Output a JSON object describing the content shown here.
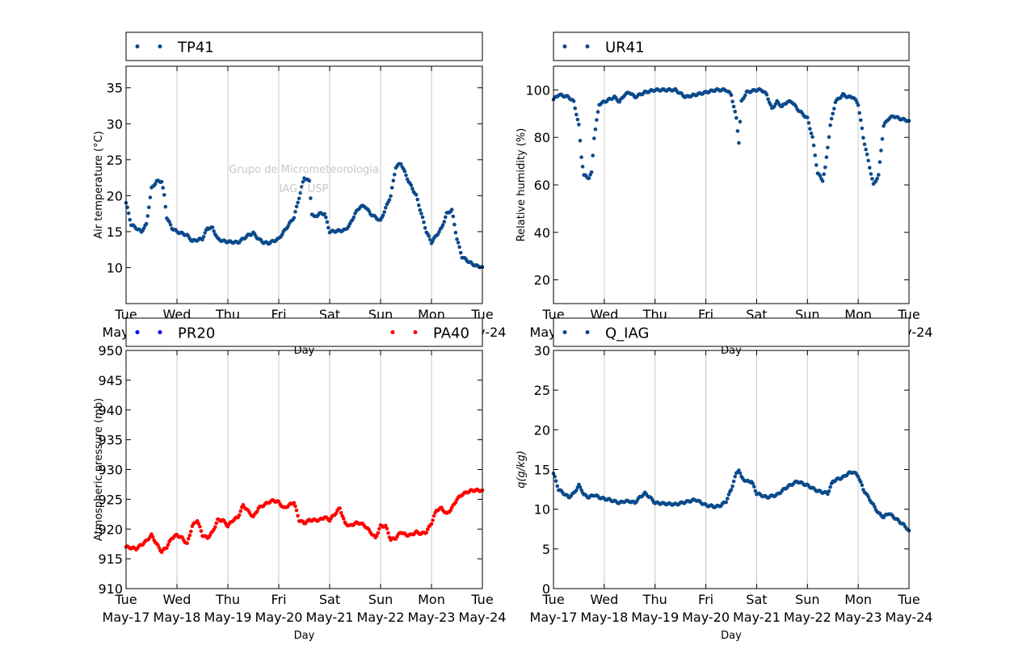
{
  "figure": {
    "watermark_lines": [
      "Grupo de Micrometeorologia",
      "IAG / USP"
    ]
  },
  "chart_data": [
    {
      "type": "scatter",
      "panel": "air-temperature",
      "xlabel": "Day",
      "ylabel": "Air temperature (°C)",
      "ylim": [
        5,
        38
      ],
      "yticks": [
        10,
        15,
        20,
        25,
        30,
        35
      ],
      "xlim": [
        0,
        7
      ],
      "xticks_day": [
        "Tue",
        "Wed",
        "Thu",
        "Fri",
        "Sat",
        "Sun",
        "Mon",
        "Tue"
      ],
      "xticks_date": [
        "May-17",
        "May-18",
        "May-19",
        "May-20",
        "May-21",
        "May-22",
        "May-23",
        "May-24"
      ],
      "grid": "vertical",
      "legend_position": "above",
      "series": [
        {
          "name": "TP41",
          "color": "#0b4a8b",
          "x": [
            0,
            0.1,
            0.3,
            0.4,
            0.5,
            0.6,
            0.7,
            0.75,
            0.8,
            0.9,
            1,
            1.2,
            1.3,
            1.5,
            1.6,
            1.7,
            1.8,
            1.9,
            2,
            2.2,
            2.4,
            2.5,
            2.6,
            2.7,
            2.8,
            3,
            3.3,
            3.5,
            3.6,
            3.65,
            3.7,
            3.8,
            3.9,
            4.0,
            4.3,
            4.4,
            4.5,
            4.6,
            4.7,
            4.8,
            5.0,
            5.2,
            5.3,
            5.4,
            5.55,
            5.7,
            5.8,
            5.9,
            6.0,
            6.2,
            6.3,
            6.4,
            6.5,
            6.6,
            6.7,
            6.8,
            6.9,
            7.0
          ],
          "y": [
            19,
            16,
            15,
            16,
            21,
            22,
            22,
            20,
            17,
            15.5,
            15,
            14.5,
            13.7,
            14,
            15.5,
            15.5,
            14,
            13.7,
            13.6,
            13.5,
            14.5,
            14.8,
            14,
            13.5,
            13.4,
            14,
            17,
            22.5,
            22,
            17.5,
            17,
            17.5,
            17.5,
            15,
            15.2,
            16,
            17.5,
            18.5,
            18.5,
            17.5,
            16.5,
            20,
            24,
            24.5,
            22,
            20,
            17.5,
            15,
            13.5,
            15.5,
            17.5,
            18,
            14,
            11.5,
            11,
            10.5,
            10.2,
            10.1
          ]
        }
      ]
    },
    {
      "type": "scatter",
      "panel": "relative-humidity",
      "xlabel": "Day",
      "ylabel": "Relative humidity (%)",
      "ylim": [
        10,
        110
      ],
      "yticks": [
        20,
        40,
        60,
        80,
        100
      ],
      "xlim": [
        0,
        7
      ],
      "xticks_day": [
        "Tue",
        "Wed",
        "Thu",
        "Fri",
        "Sat",
        "Sun",
        "Mon",
        "Tue"
      ],
      "xticks_date": [
        "May-17",
        "May-18",
        "May-19",
        "May-20",
        "May-21",
        "May-22",
        "May-23",
        "May-24"
      ],
      "grid": "vertical",
      "legend_position": "above",
      "series": [
        {
          "name": "UR41",
          "color": "#0b4a8b",
          "x": [
            0,
            0.1,
            0.3,
            0.4,
            0.5,
            0.55,
            0.6,
            0.7,
            0.75,
            0.8,
            0.9,
            1.0,
            1.1,
            1.2,
            1.3,
            1.4,
            1.5,
            1.6,
            1.8,
            2.0,
            2.2,
            2.4,
            2.6,
            2.8,
            3.0,
            3.2,
            3.3,
            3.4,
            3.5,
            3.6,
            3.65,
            3.7,
            3.8,
            4.0,
            4.1,
            4.2,
            4.3,
            4.4,
            4.5,
            4.6,
            4.7,
            4.8,
            5.0,
            5.1,
            5.2,
            5.3,
            5.35,
            5.45,
            5.55,
            5.7,
            5.8,
            5.9,
            6.0,
            6.1,
            6.2,
            6.3,
            6.4,
            6.5,
            6.6,
            6.7,
            6.8,
            7.0
          ],
          "y": [
            96,
            98,
            97,
            95,
            85,
            72,
            64,
            63,
            65,
            80,
            94,
            95,
            96,
            97,
            95,
            98,
            99,
            97,
            99,
            100,
            100,
            100,
            97,
            98,
            99,
            100,
            100,
            100,
            98,
            88,
            78,
            95,
            99,
            100,
            100,
            98,
            92,
            95,
            93,
            95,
            95,
            92,
            88,
            80,
            65,
            62,
            67,
            85,
            95,
            98,
            97,
            97,
            94,
            80,
            70,
            60,
            64,
            85,
            88,
            89,
            88,
            87
          ]
        }
      ]
    },
    {
      "type": "scatter",
      "panel": "atmospheric-pressure",
      "xlabel": "Day",
      "ylabel": "Atmospheric pressure (mb)",
      "ylim": [
        910,
        950
      ],
      "yticks": [
        910,
        915,
        920,
        925,
        930,
        935,
        940,
        945,
        950
      ],
      "xlim": [
        0,
        7
      ],
      "xticks_day": [
        "Tue",
        "Wed",
        "Thu",
        "Fri",
        "Sat",
        "Sun",
        "Mon",
        "Tue"
      ],
      "xticks_date": [
        "May-17",
        "May-18",
        "May-19",
        "May-20",
        "May-21",
        "May-22",
        "May-23",
        "May-24"
      ],
      "grid": "vertical",
      "legend_position": "above",
      "series": [
        {
          "name": "PR20",
          "color": "#0000ff",
          "x": [],
          "y": []
        },
        {
          "name": "PA40",
          "color": "#ff0000",
          "x": [
            0,
            0.2,
            0.4,
            0.5,
            0.6,
            0.7,
            0.8,
            0.9,
            1.0,
            1.1,
            1.2,
            1.3,
            1.4,
            1.5,
            1.6,
            1.7,
            1.8,
            1.9,
            2.0,
            2.1,
            2.2,
            2.3,
            2.4,
            2.5,
            2.6,
            2.7,
            2.8,
            2.9,
            3.0,
            3.1,
            3.2,
            3.3,
            3.4,
            3.5,
            3.6,
            3.7,
            3.8,
            3.9,
            4.0,
            4.1,
            4.2,
            4.3,
            4.4,
            4.5,
            4.6,
            4.7,
            4.8,
            4.9,
            5.0,
            5.1,
            5.2,
            5.3,
            5.4,
            5.5,
            5.6,
            5.7,
            5.8,
            5.9,
            6.0,
            6.1,
            6.2,
            6.3,
            6.4,
            6.5,
            6.6,
            6.7,
            6.8,
            6.9,
            7.0
          ],
          "y": [
            917,
            916.7,
            918,
            919,
            917.5,
            916.2,
            917,
            918.5,
            919,
            918.5,
            917.5,
            920.5,
            921.5,
            919,
            918.5,
            919.5,
            921.5,
            921.5,
            920.5,
            921.5,
            922,
            924,
            923,
            922,
            923.5,
            924,
            924.5,
            924.8,
            924.5,
            923.5,
            924,
            924.5,
            921.5,
            921,
            921.5,
            921.5,
            921.5,
            922,
            921.5,
            922.5,
            923.5,
            921,
            920.5,
            921,
            921,
            920.5,
            919.5,
            918.5,
            920.5,
            920.5,
            918.2,
            918.5,
            919.5,
            919,
            919,
            919.5,
            919.2,
            919.5,
            921,
            923.2,
            923.5,
            922.5,
            923.5,
            925,
            925.8,
            926.2,
            926.5,
            926.5,
            926.5
          ]
        }
      ]
    },
    {
      "type": "scatter",
      "panel": "specific-humidity",
      "xlabel": "Day",
      "ylabel": "q(g/kg)",
      "ylim": [
        0,
        30
      ],
      "yticks": [
        0,
        5,
        10,
        15,
        20,
        25,
        30
      ],
      "xlim": [
        0,
        7
      ],
      "xticks_day": [
        "Tue",
        "Wed",
        "Thu",
        "Fri",
        "Sat",
        "Sun",
        "Mon",
        "Tue"
      ],
      "xticks_date": [
        "May-17",
        "May-18",
        "May-19",
        "May-20",
        "May-21",
        "May-22",
        "May-23",
        "May-24"
      ],
      "grid": "vertical",
      "legend_position": "above",
      "series": [
        {
          "name": "Q_IAG",
          "color": "#0b4a8b",
          "x": [
            0,
            0.1,
            0.2,
            0.3,
            0.4,
            0.5,
            0.55,
            0.6,
            0.7,
            0.8,
            0.9,
            1.0,
            1.1,
            1.2,
            1.3,
            1.4,
            1.5,
            1.6,
            1.7,
            1.8,
            1.9,
            2.0,
            2.2,
            2.4,
            2.6,
            2.8,
            3.0,
            3.2,
            3.3,
            3.4,
            3.5,
            3.6,
            3.65,
            3.7,
            3.8,
            3.9,
            4.0,
            4.2,
            4.4,
            4.6,
            4.8,
            5.0,
            5.2,
            5.4,
            5.5,
            5.6,
            5.7,
            5.8,
            5.9,
            6.0,
            6.1,
            6.2,
            6.3,
            6.4,
            6.5,
            6.6,
            6.7,
            6.8,
            6.9,
            7.0
          ],
          "y": [
            14.5,
            12.5,
            12,
            11.5,
            12,
            13,
            12.5,
            11.8,
            11.5,
            11.8,
            11.5,
            11.3,
            11.2,
            11,
            10.8,
            11,
            11,
            10.8,
            11.5,
            12,
            11.5,
            10.8,
            10.7,
            10.6,
            10.9,
            11.2,
            10.5,
            10.3,
            10.5,
            11,
            12.5,
            14.5,
            15,
            14,
            13.5,
            13.5,
            12,
            11.5,
            11.8,
            12.8,
            13.5,
            13,
            12.3,
            12,
            13.5,
            13.8,
            14,
            14.5,
            14.7,
            14.2,
            12.5,
            11.5,
            10.5,
            9.5,
            9,
            9.5,
            9,
            8.5,
            8,
            7.3
          ]
        }
      ]
    }
  ]
}
